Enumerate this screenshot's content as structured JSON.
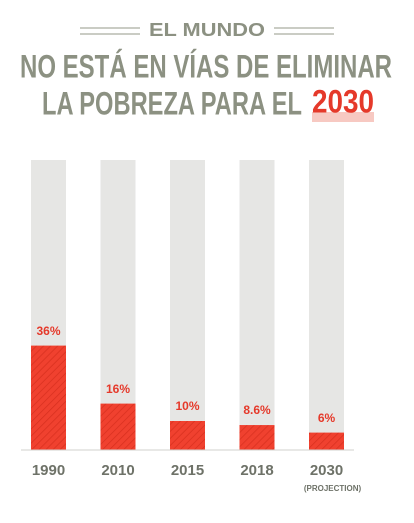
{
  "chart_data": {
    "type": "bar",
    "kicker": "EL MUNDO",
    "title": "NO ESTÁ EN VÍAS DE ELIMINAR",
    "title_line2": "LA POBREZA PARA EL",
    "title_highlight": "2030",
    "categories": [
      "1990",
      "2010",
      "2015",
      "2018",
      "2030"
    ],
    "category_notes": [
      null,
      null,
      null,
      null,
      "(PROJECTION)"
    ],
    "values": [
      36,
      16,
      10,
      8.6,
      6
    ],
    "value_labels": [
      "36%",
      "16%",
      "10%",
      "8.6%",
      "6%"
    ],
    "color": "#f0412f",
    "track_color": "#e6e6e4",
    "ylim": [
      0,
      100
    ]
  }
}
